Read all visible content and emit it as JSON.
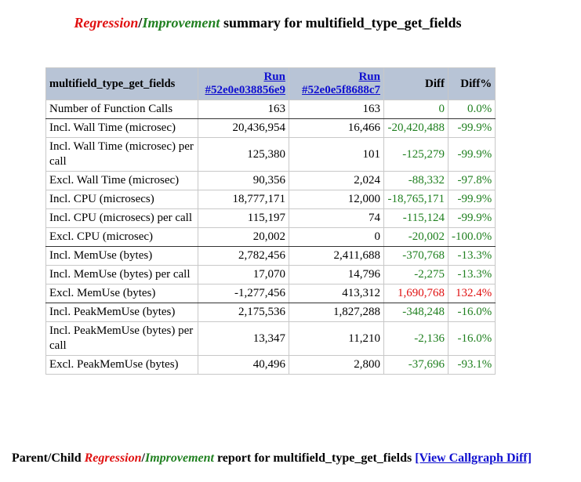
{
  "header": {
    "title": {
      "regression": "Regression",
      "slash": "/",
      "improvement": "Improvement",
      "rest": "summary for multifield_type_get_fields"
    }
  },
  "table": {
    "columns": {
      "function": "multifield_type_get_fields",
      "runs": [
        {
          "label": "Run",
          "id": "#52e0e038856e9"
        },
        {
          "label": "Run",
          "id": "#52e0e5f8688c7"
        }
      ],
      "diff": "Diff",
      "diff_pct": "Diff%"
    },
    "rows": [
      {
        "metric": "Number of Function Calls",
        "run1": "163",
        "run2": "163",
        "diff": "0",
        "diff_pct": "0.0%",
        "diff_color": "green"
      },
      {
        "metric": "Incl. Wall Time (microsec)",
        "run1": "20,436,954",
        "run2": "16,466",
        "diff": "-20,420,488",
        "diff_pct": "-99.9%",
        "diff_color": "green"
      },
      {
        "metric": "Incl. Wall Time (microsec) per call",
        "run1": "125,380",
        "run2": "101",
        "diff": "-125,279",
        "diff_pct": "-99.9%",
        "diff_color": "green"
      },
      {
        "metric": "Excl. Wall Time (microsec)",
        "run1": "90,356",
        "run2": "2,024",
        "diff": "-88,332",
        "diff_pct": "-97.8%",
        "diff_color": "green"
      },
      {
        "metric": "Incl. CPU (microsecs)",
        "run1": "18,777,171",
        "run2": "12,000",
        "diff": "-18,765,171",
        "diff_pct": "-99.9%",
        "diff_color": "green"
      },
      {
        "metric": "Incl. CPU (microsecs) per call",
        "run1": "115,197",
        "run2": "74",
        "diff": "-115,124",
        "diff_pct": "-99.9%",
        "diff_color": "green"
      },
      {
        "metric": "Excl. CPU (microsec)",
        "run1": "20,002",
        "run2": "0",
        "diff": "-20,002",
        "diff_pct": "-100.0%",
        "diff_color": "green"
      },
      {
        "metric": "Incl. MemUse (bytes)",
        "run1": "2,782,456",
        "run2": "2,411,688",
        "diff": "-370,768",
        "diff_pct": "-13.3%",
        "diff_color": "green"
      },
      {
        "metric": "Incl. MemUse (bytes) per call",
        "run1": "17,070",
        "run2": "14,796",
        "diff": "-2,275",
        "diff_pct": "-13.3%",
        "diff_color": "green"
      },
      {
        "metric": "Excl. MemUse (bytes)",
        "run1": "-1,277,456",
        "run2": "413,312",
        "diff": "1,690,768",
        "diff_pct": "132.4%",
        "diff_color": "red"
      },
      {
        "metric": "Incl. PeakMemUse (bytes)",
        "run1": "2,175,536",
        "run2": "1,827,288",
        "diff": "-348,248",
        "diff_pct": "-16.0%",
        "diff_color": "green"
      },
      {
        "metric": "Incl. PeakMemUse (bytes) per call",
        "run1": "13,347",
        "run2": "11,210",
        "diff": "-2,136",
        "diff_pct": "-16.0%",
        "diff_color": "green"
      },
      {
        "metric": "Excl. PeakMemUse (bytes)",
        "run1": "40,496",
        "run2": "2,800",
        "diff": "-37,696",
        "diff_pct": "-93.1%",
        "diff_color": "green"
      }
    ]
  },
  "footer": {
    "lead": "Parent/Child",
    "regression": "Regression",
    "slash": "/",
    "improvement": "Improvement",
    "rest": "report for multifield_type_get_fields",
    "link": "[View Callgraph Diff]"
  }
}
